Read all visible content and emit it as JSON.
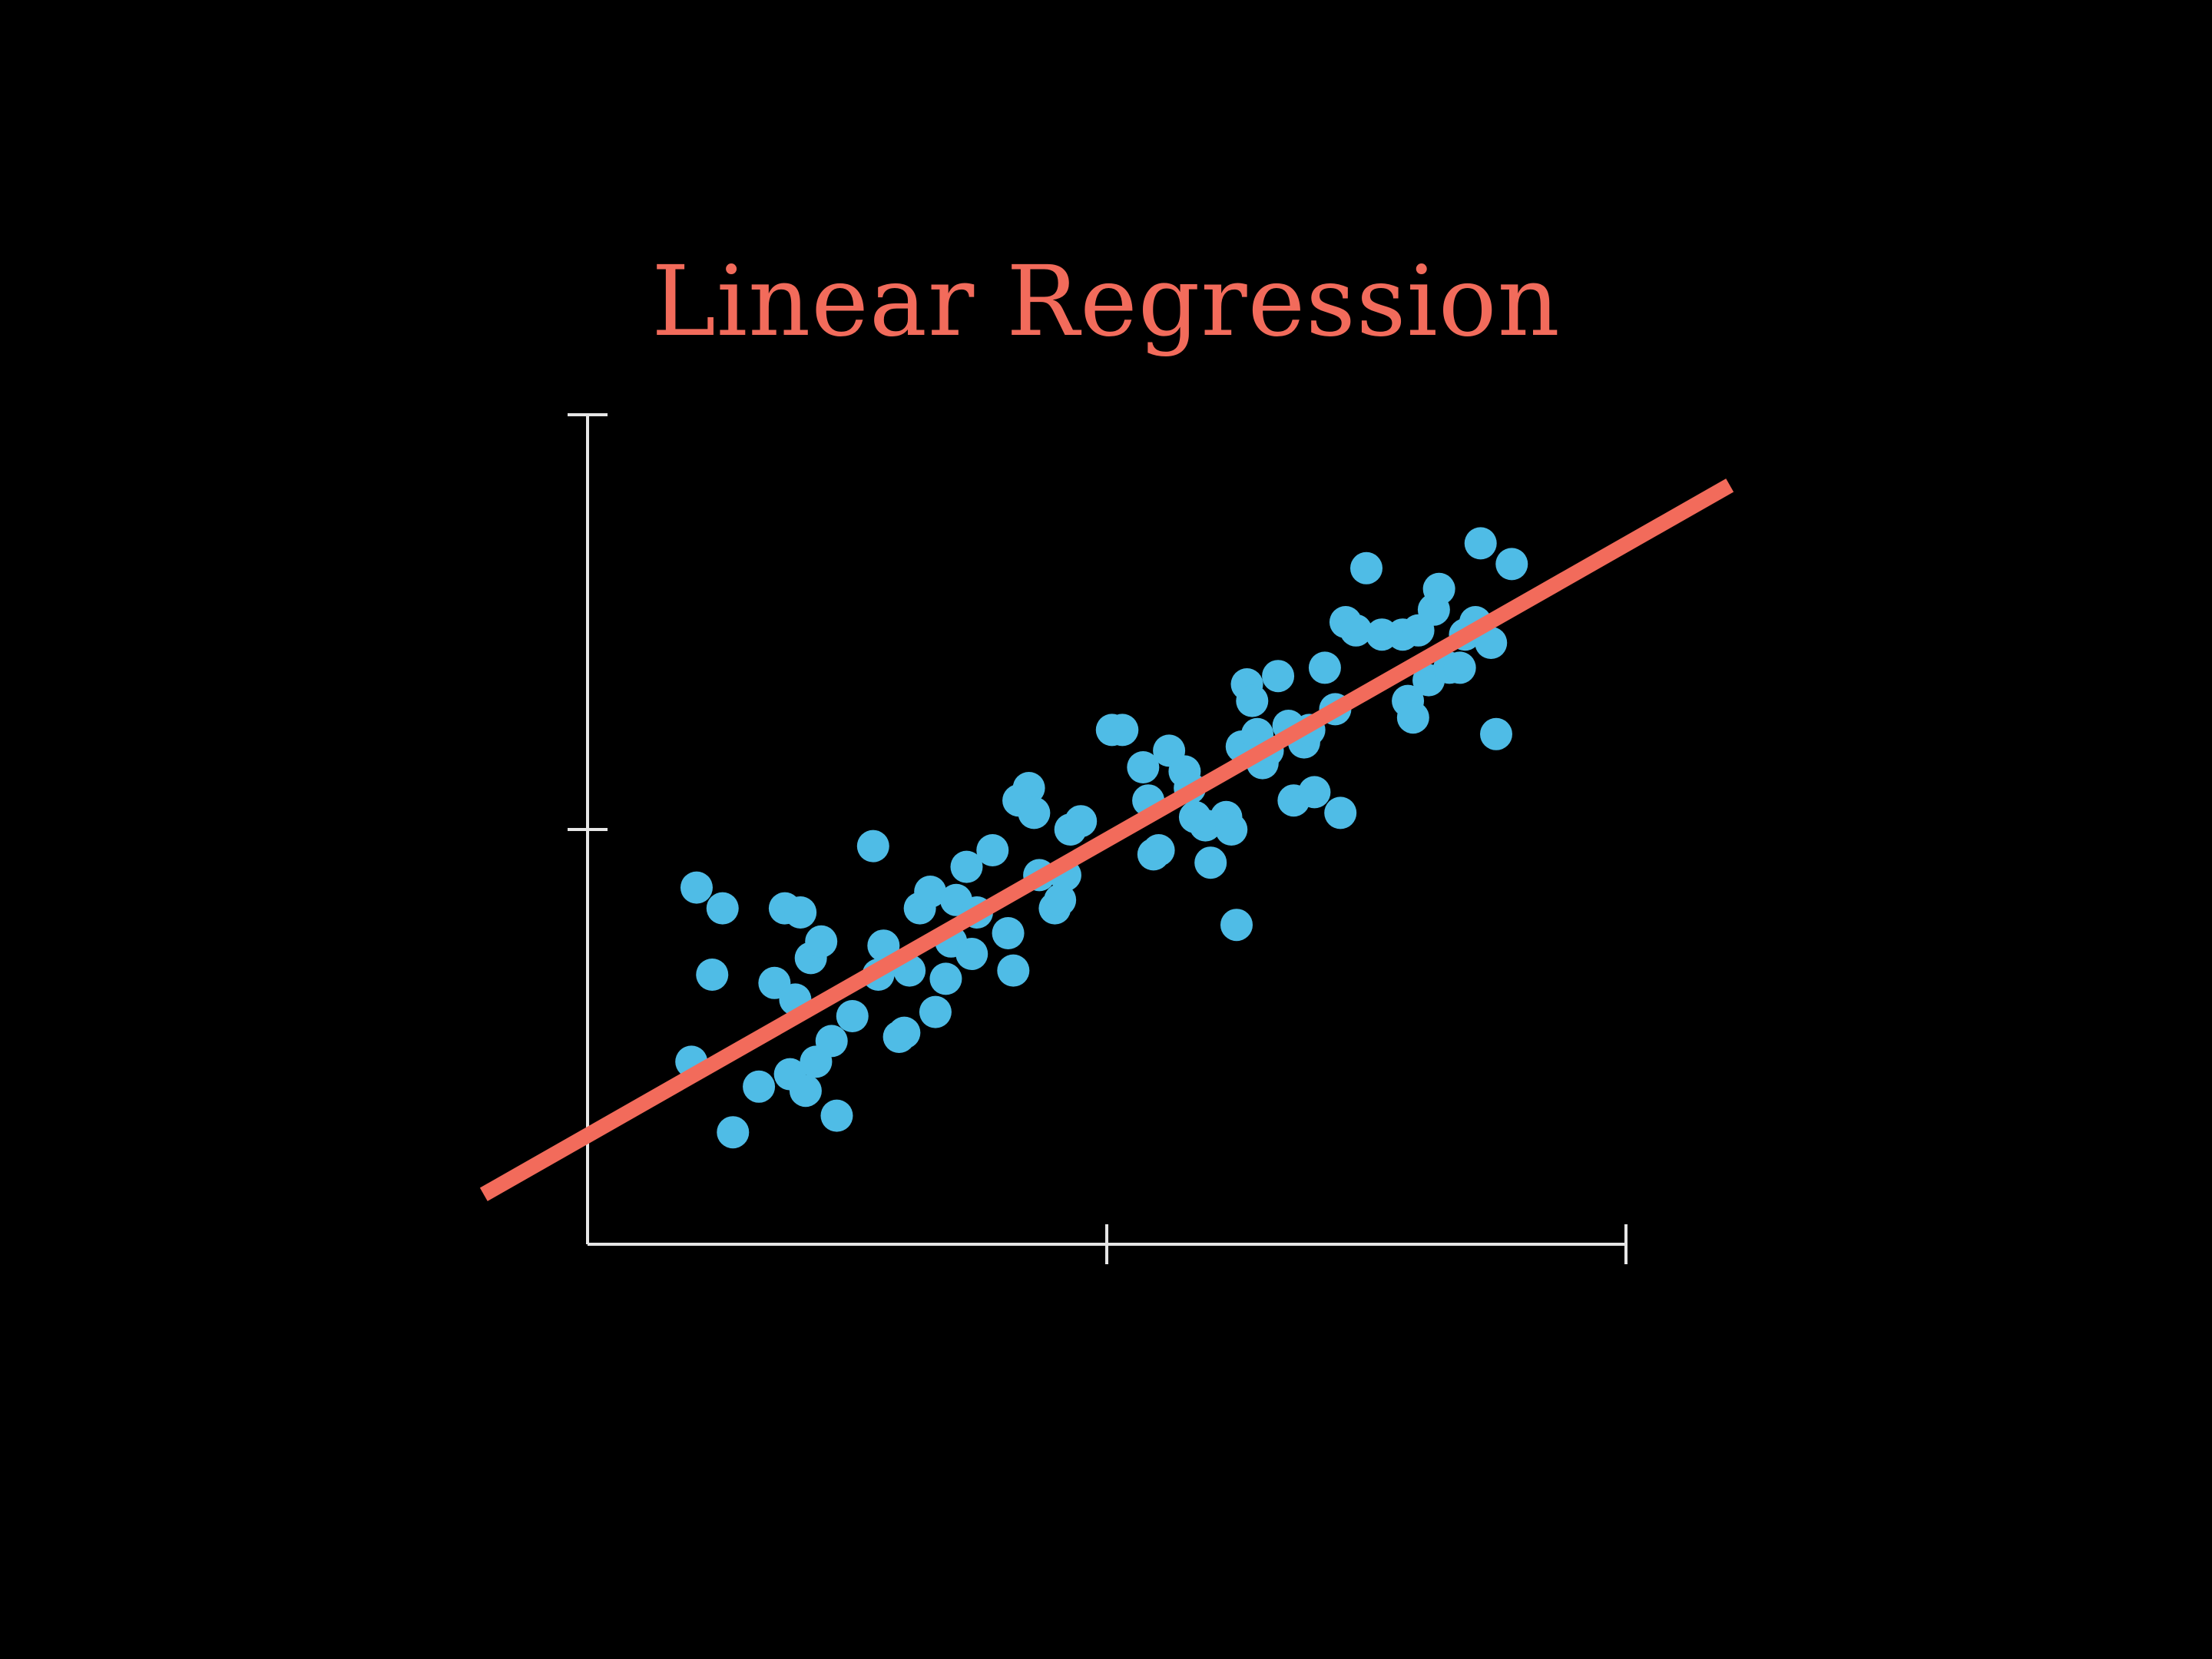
{
  "colors": {
    "background": "#000000",
    "title": "#F26B5B",
    "axis": "#E6E6E6",
    "points": "#4FBCE6",
    "regression_line": "#F26B5B"
  },
  "chart_data": {
    "type": "scatter",
    "title": "Linear Regression",
    "xlabel": "",
    "ylabel": "",
    "xlim": [
      0,
      2
    ],
    "ylim": [
      0,
      2
    ],
    "x_ticks": [
      1,
      2
    ],
    "y_ticks": [
      1,
      2
    ],
    "tick_labels_shown": false,
    "grid": false,
    "legend": "none",
    "series": [
      {
        "kind": "points",
        "x": [
          0.2,
          0.21,
          0.24,
          0.26,
          0.28,
          0.33,
          0.36,
          0.38,
          0.4,
          0.43,
          0.39,
          0.45,
          0.42,
          0.48,
          0.41,
          0.44,
          0.47,
          0.51,
          0.55,
          0.56,
          0.57,
          0.6,
          0.61,
          0.62,
          0.64,
          0.66,
          0.67,
          0.69,
          0.7,
          0.71,
          0.73,
          0.74,
          0.75,
          0.78,
          0.81,
          0.82,
          0.83,
          0.85,
          0.86,
          0.87,
          0.9,
          0.91,
          0.92,
          0.93,
          0.95,
          1.01,
          1.03,
          1.07,
          1.08,
          1.09,
          1.1,
          1.12,
          1.15,
          1.16,
          1.17,
          1.19,
          1.2,
          1.23,
          1.24,
          1.25,
          1.26,
          1.27,
          1.28,
          1.29,
          1.3,
          1.31,
          1.33,
          1.35,
          1.36,
          1.38,
          1.39,
          1.4,
          1.42,
          1.44,
          1.45,
          1.46,
          1.48,
          1.5,
          1.53,
          1.57,
          1.58,
          1.59,
          1.6,
          1.62,
          1.63,
          1.64,
          1.66,
          1.68,
          1.69,
          1.71,
          1.72,
          1.74,
          1.75,
          1.78
        ],
        "y": [
          0.44,
          0.86,
          0.65,
          0.81,
          0.27,
          0.38,
          0.63,
          0.81,
          0.59,
          0.69,
          0.41,
          0.73,
          0.37,
          0.31,
          0.8,
          0.44,
          0.49,
          0.55,
          0.96,
          0.65,
          0.72,
          0.5,
          0.51,
          0.66,
          0.81,
          0.85,
          0.56,
          0.64,
          0.73,
          0.83,
          0.91,
          0.7,
          0.8,
          0.95,
          0.75,
          0.66,
          1.07,
          1.1,
          1.04,
          0.89,
          0.81,
          0.83,
          0.89,
          1.0,
          1.02,
          1.24,
          1.24,
          1.15,
          1.07,
          0.94,
          0.95,
          1.19,
          1.14,
          1.1,
          1.03,
          1.01,
          0.92,
          1.03,
          1.0,
          0.77,
          1.2,
          1.35,
          1.31,
          1.23,
          1.16,
          1.19,
          1.37,
          1.25,
          1.07,
          1.21,
          1.24,
          1.09,
          1.39,
          1.29,
          1.04,
          1.5,
          1.48,
          1.63,
          1.47,
          1.47,
          1.31,
          1.27,
          1.48,
          1.36,
          1.53,
          1.58,
          1.39,
          1.39,
          1.47,
          1.5,
          1.69,
          1.45,
          1.23,
          1.64
        ]
      },
      {
        "kind": "line",
        "x": [
          -0.2,
          2.2
        ],
        "y": [
          0.12,
          1.83
        ]
      }
    ]
  }
}
